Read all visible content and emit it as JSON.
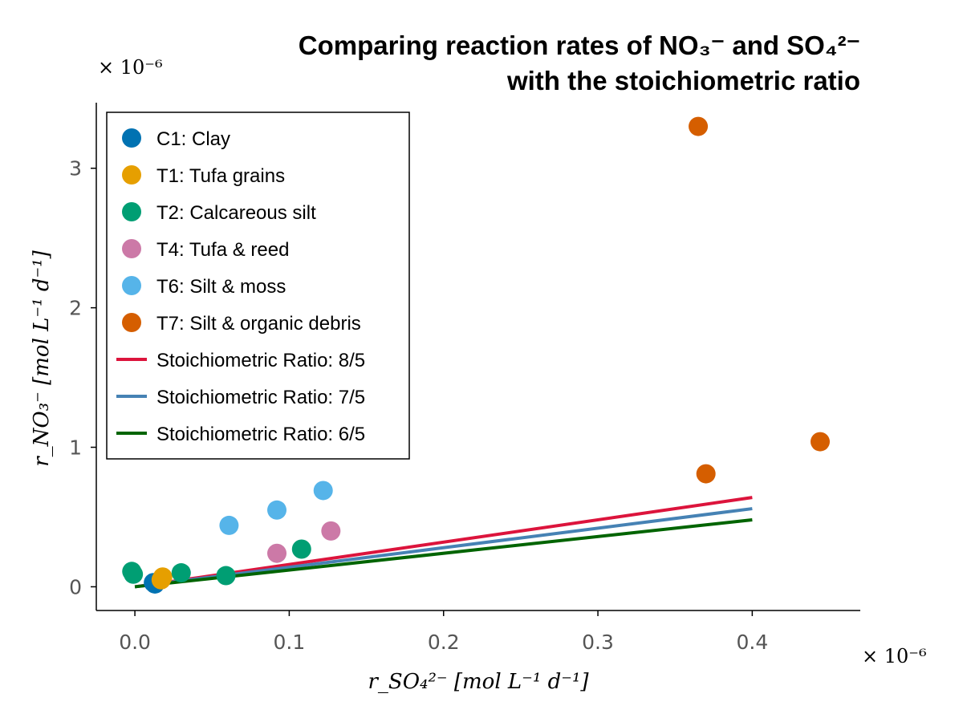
{
  "chart_data": {
    "type": "scatter",
    "title": "Comparing reaction rates of NO₃⁻ and SO₄²⁻",
    "title_line2": "with the stoichiometric ratio",
    "xlabel": "r_SO₄²⁻ [mol L⁻¹ d⁻¹]",
    "ylabel": "r_NO₃⁻ [mol L⁻¹ d⁻¹]",
    "x_multiplier": "× 10⁻⁶",
    "y_multiplier": "× 10⁻⁶",
    "xlim": [
      -0.025,
      0.47
    ],
    "ylim": [
      -0.17,
      3.47
    ],
    "x_ticks": [
      0.0,
      0.1,
      0.2,
      0.3,
      0.4
    ],
    "x_tick_labels": [
      "0.0",
      "0.1",
      "0.2",
      "0.3",
      "0.4"
    ],
    "y_ticks": [
      0,
      1,
      2,
      3
    ],
    "y_tick_labels": [
      "0",
      "1",
      "2",
      "3"
    ],
    "grid": false,
    "legend_position": "top-left",
    "series": [
      {
        "name": "C1: Clay",
        "kind": "scatter",
        "color": "#0072B2",
        "points": [
          [
            0.012,
            0.03
          ],
          [
            0.013,
            0.02
          ]
        ]
      },
      {
        "name": "T1: Tufa grains",
        "kind": "scatter",
        "color": "#E69F00",
        "points": [
          [
            0.017,
            0.05
          ],
          [
            0.018,
            0.07
          ]
        ]
      },
      {
        "name": "T2: Calcareous silt",
        "kind": "scatter",
        "color": "#009E73",
        "points": [
          [
            -0.002,
            0.11
          ],
          [
            -0.001,
            0.09
          ],
          [
            0.03,
            0.1
          ],
          [
            0.059,
            0.08
          ],
          [
            0.108,
            0.27
          ]
        ]
      },
      {
        "name": "T4: Tufa & reed",
        "kind": "scatter",
        "color": "#CC79A7",
        "points": [
          [
            0.092,
            0.24
          ],
          [
            0.127,
            0.4
          ]
        ]
      },
      {
        "name": "T6: Silt & moss",
        "kind": "scatter",
        "color": "#56B4E9",
        "points": [
          [
            0.061,
            0.44
          ],
          [
            0.092,
            0.55
          ],
          [
            0.122,
            0.69
          ]
        ]
      },
      {
        "name": "T7: Silt & organic debris",
        "kind": "scatter",
        "color": "#D55E00",
        "points": [
          [
            0.365,
            3.3
          ],
          [
            0.37,
            0.81
          ],
          [
            0.444,
            1.04
          ]
        ]
      },
      {
        "name": "Stoichiometric Ratio: 8/5",
        "kind": "line",
        "color": "#DC143C",
        "slope": 1.6,
        "x": [
          0.0,
          0.4
        ],
        "y": [
          0.0,
          0.64
        ]
      },
      {
        "name": "Stoichiometric Ratio: 7/5",
        "kind": "line",
        "color": "#4682B4",
        "slope": 1.4,
        "x": [
          0.0,
          0.4
        ],
        "y": [
          0.0,
          0.56
        ]
      },
      {
        "name": "Stoichiometric Ratio: 6/5",
        "kind": "line",
        "color": "#006400",
        "slope": 1.2,
        "x": [
          0.0,
          0.4
        ],
        "y": [
          0.0,
          0.48
        ]
      }
    ]
  }
}
